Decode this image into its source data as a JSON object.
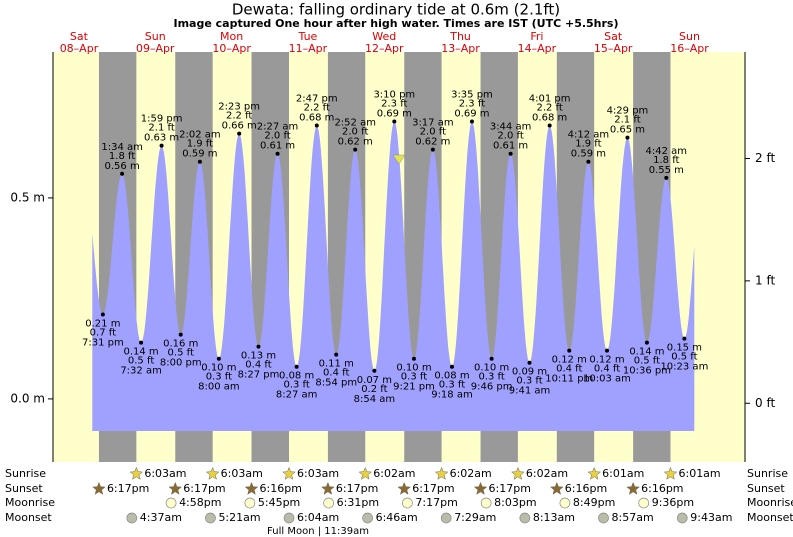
{
  "chart_data": {
    "type": "tide",
    "title": "Dewata: falling  ordinary tide at 0.6m (2.1ft)",
    "subtitle": "Image captured One hour after high water. Times are IST (UTC +5.5hrs)",
    "ylim": [
      -0.157,
      0.863
    ],
    "yticks": [
      {
        "value": 0.5,
        "label": "0.5 m"
      },
      {
        "value": 0,
        "label": "0.0 m"
      }
    ],
    "y2lim": [
      -0.48,
      2.87
    ],
    "y2ticks": [
      {
        "value": 0,
        "label": "0 ft"
      },
      {
        "value": 1,
        "label": "1 ft"
      },
      {
        "value": 2,
        "label": "2 ft"
      }
    ],
    "color": "#a0a0ff",
    "row_labels": {
      "sunrise": "Sunrise",
      "sunset": "Sunset",
      "moonrise": "Moonrise",
      "moonset": "Moonset"
    },
    "moon_phase": "Full Moon | 11:39am",
    "days": [
      {
        "dow": "Sat",
        "date": "08–Apr",
        "sunset": "6:17pm",
        "tides": [
          {
            "time": "7:31 pm",
            "ft": "0.7 ft",
            "m": {
              "value": 0.21,
              "label": "0.21 m"
            }
          }
        ]
      },
      {
        "dow": "Sun",
        "date": "09–Apr",
        "sunrise": "6:03am",
        "sunset": "6:17pm",
        "moonrise": "4:58pm",
        "moonset": "4:37am",
        "tides": [
          {
            "time": "1:34 am",
            "ft": "1.8 ft",
            "m": {
              "value": 0.56,
              "label": "0.56 m"
            }
          },
          {
            "time": "7:32 am",
            "ft": "0.5 ft",
            "m": {
              "value": 0.14,
              "label": "0.14 m"
            }
          },
          {
            "time": "1:59 pm",
            "ft": "2.1 ft",
            "m": {
              "value": 0.63,
              "label": "0.63 m"
            }
          },
          {
            "time": "8:00 pm",
            "ft": "0.5 ft",
            "m": {
              "value": 0.16,
              "label": "0.16 m"
            }
          }
        ]
      },
      {
        "dow": "Mon",
        "date": "10–Apr",
        "sunrise": "6:03am",
        "sunset": "6:16pm",
        "moonrise": "5:45pm",
        "moonset": "5:21am",
        "tides": [
          {
            "time": "2:02 am",
            "ft": "1.9 ft",
            "m": {
              "value": 0.59,
              "label": "0.59 m"
            }
          },
          {
            "time": "8:00 am",
            "ft": "0.3 ft",
            "m": {
              "value": 0.1,
              "label": "0.10 m"
            }
          },
          {
            "time": "2:23 pm",
            "ft": "2.2 ft",
            "m": {
              "value": 0.66,
              "label": "0.66 m"
            }
          },
          {
            "time": "8:27 pm",
            "ft": "0.4 ft",
            "m": {
              "value": 0.13,
              "label": "0.13 m"
            }
          }
        ]
      },
      {
        "dow": "Tue",
        "date": "11–Apr",
        "sunrise": "6:03am",
        "sunset": "6:17pm",
        "moonrise": "6:31pm",
        "moonset": "6:04am",
        "tides": [
          {
            "time": "2:27 am",
            "ft": "2.0 ft",
            "m": {
              "value": 0.61,
              "label": "0.61 m"
            }
          },
          {
            "time": "8:27 am",
            "ft": "0.3 ft",
            "m": {
              "value": 0.08,
              "label": "0.08 m"
            }
          },
          {
            "time": "2:47 pm",
            "ft": "2.2 ft",
            "m": {
              "value": 0.68,
              "label": "0.68 m"
            }
          },
          {
            "time": "8:54 pm",
            "ft": "0.4 ft",
            "m": {
              "value": 0.11,
              "label": "0.11 m"
            }
          }
        ]
      },
      {
        "dow": "Wed",
        "date": "12–Apr",
        "sunrise": "6:02am",
        "sunset": "6:17pm",
        "moonrise": "7:17pm",
        "moonset": "6:46am",
        "tides": [
          {
            "time": "2:52 am",
            "ft": "2.0 ft",
            "m": {
              "value": 0.62,
              "label": "0.62 m"
            }
          },
          {
            "time": "8:54 am",
            "ft": "0.2 ft",
            "m": {
              "value": 0.07,
              "label": "0.07 m"
            }
          },
          {
            "time": "3:10 pm",
            "ft": "2.3 ft",
            "m": {
              "value": 0.69,
              "label": "0.69 m"
            }
          },
          {
            "time": "9:21 pm",
            "ft": "0.3 ft",
            "m": {
              "value": 0.1,
              "label": "0.10 m"
            }
          }
        ]
      },
      {
        "dow": "Thu",
        "date": "13–Apr",
        "sunrise": "6:02am",
        "sunset": "6:17pm",
        "moonrise": "8:03pm",
        "moonset": "7:29am",
        "tides": [
          {
            "time": "3:17 am",
            "ft": "2.0 ft",
            "m": {
              "value": 0.62,
              "label": "0.62 m"
            }
          },
          {
            "time": "9:18 am",
            "ft": "0.3 ft",
            "m": {
              "value": 0.08,
              "label": "0.08 m"
            }
          },
          {
            "time": "3:35 pm",
            "ft": "2.3 ft",
            "m": {
              "value": 0.69,
              "label": "0.69 m"
            }
          },
          {
            "time": "9:46 pm",
            "ft": "0.3 ft",
            "m": {
              "value": 0.1,
              "label": "0.10 m"
            }
          }
        ]
      },
      {
        "dow": "Fri",
        "date": "14–Apr",
        "sunrise": "6:02am",
        "sunset": "6:16pm",
        "moonrise": "8:49pm",
        "moonset": "8:13am",
        "tides": [
          {
            "time": "3:44 am",
            "ft": "2.0 ft",
            "m": {
              "value": 0.61,
              "label": "0.61 m"
            }
          },
          {
            "time": "9:41 am",
            "ft": "0.3 ft",
            "m": {
              "value": 0.09,
              "label": "0.09 m"
            }
          },
          {
            "time": "4:01 pm",
            "ft": "2.2 ft",
            "m": {
              "value": 0.68,
              "label": "0.68 m"
            }
          },
          {
            "time": "10:11 pm",
            "ft": "0.4 ft",
            "m": {
              "value": 0.12,
              "label": "0.12 m"
            }
          }
        ]
      },
      {
        "dow": "Sat",
        "date": "15–Apr",
        "sunrise": "6:01am",
        "sunset": "6:16pm",
        "moonrise": "9:36pm",
        "moonset": "8:57am",
        "tides": [
          {
            "time": "4:12 am",
            "ft": "1.9 ft",
            "m": {
              "value": 0.59,
              "label": "0.59 m"
            }
          },
          {
            "time": "10:03 am",
            "ft": "0.4 ft",
            "m": {
              "value": 0.12,
              "label": "0.12 m"
            }
          },
          {
            "time": "4:29 pm",
            "ft": "2.1 ft",
            "m": {
              "value": 0.65,
              "label": "0.65 m"
            }
          },
          {
            "time": "10:36 pm",
            "ft": "0.5 ft",
            "m": {
              "value": 0.14,
              "label": "0.14 m"
            }
          }
        ]
      },
      {
        "dow": "Sun",
        "date": "16–Apr",
        "sunrise": "6:01am",
        "moonset": "9:43am",
        "tides": [
          {
            "time": "4:42 am",
            "ft": "1.8 ft",
            "m": {
              "value": 0.55,
              "label": "0.55 m"
            }
          },
          {
            "time": "10:23 am",
            "ft": "0.5 ft",
            "m": {
              "value": 0.15,
              "label": "0.15 m"
            }
          }
        ]
      }
    ]
  }
}
